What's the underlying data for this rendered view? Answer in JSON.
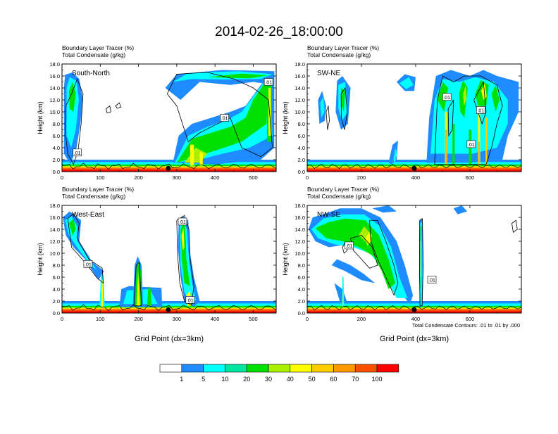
{
  "main_title": "2014-02-26_18:00:00",
  "panel_titles": {
    "tracer": "Boundary Layer Tracer   (%)",
    "condensate": "Total Condensate   (g/kg)"
  },
  "ylabel": "Height (km)",
  "xlabel": "Grid Point (dx=3km)",
  "contour_note": "Total Condensate Contours: .01 to .01 by .000",
  "colors": {
    "c0": "#ffffff",
    "c1": "#1e8cff",
    "c5": "#00ffff",
    "c10": "#00e6a0",
    "c20": "#00e000",
    "c30": "#a8f000",
    "c40": "#ffff00",
    "c50": "#ffcc00",
    "c60": "#ff9900",
    "c70": "#ff5000",
    "c100": "#ff0000"
  },
  "chart_data": [
    {
      "type": "heatmap",
      "name": "South-North",
      "xlim": [
        0,
        560
      ],
      "xticks": [
        0,
        100,
        200,
        300,
        400,
        500
      ],
      "ylim": [
        0,
        18
      ],
      "yticks": [
        "0.0",
        "2.0",
        "4.0",
        "6.0",
        "8.0",
        "10.0",
        "12.0",
        "14.0",
        "16.0",
        "18.0"
      ],
      "marker_x": 278,
      "contour_labels": [
        {
          "x": 40,
          "y": 3.2
        },
        {
          "x": 425,
          "y": 9.0
        },
        {
          "x": 540,
          "y": 15.0
        }
      ]
    },
    {
      "type": "heatmap",
      "name": "SW-NE",
      "xlim": [
        0,
        790
      ],
      "xticks": [
        0,
        200,
        400,
        600
      ],
      "ylim": [
        0,
        18
      ],
      "yticks": [
        "0.0",
        "2.0",
        "4.0",
        "6.0",
        "8.0",
        "10.0",
        "12.0",
        "14.0",
        "16.0",
        "18.0"
      ],
      "marker_x": 395,
      "contour_labels": [
        {
          "x": 515,
          "y": 12.5
        },
        {
          "x": 640,
          "y": 10.3
        },
        {
          "x": 605,
          "y": 4.6
        }
      ]
    },
    {
      "type": "heatmap",
      "name": "West-East",
      "xlim": [
        0,
        560
      ],
      "xticks": [
        0,
        100,
        200,
        300,
        400,
        500
      ],
      "ylim": [
        0,
        18
      ],
      "yticks": [
        "0.0",
        "2.0",
        "4.0",
        "6.0",
        "8.0",
        "10.0",
        "12.0",
        "14.0",
        "16.0",
        "18.0"
      ],
      "marker_x": 278,
      "contour_labels": [
        {
          "x": 68,
          "y": 8.2
        },
        {
          "x": 335,
          "y": 2.2
        },
        {
          "x": 315,
          "y": 15.3
        }
      ]
    },
    {
      "type": "heatmap",
      "name": "NW-SE",
      "xlim": [
        0,
        790
      ],
      "xticks": [
        0,
        200,
        400,
        600
      ],
      "ylim": [
        0,
        18
      ],
      "yticks": [
        "0.0",
        "2.0",
        "4.0",
        "6.0",
        "8.0",
        "10.0",
        "12.0",
        "14.0",
        "16.0",
        "18.0"
      ],
      "marker_x": 395,
      "contour_labels": [
        {
          "x": 155,
          "y": 11.3
        },
        {
          "x": 460,
          "y": 5.6
        }
      ]
    }
  ],
  "colorbar": {
    "labels": [
      "1",
      "5",
      "10",
      "20",
      "30",
      "40",
      "50",
      "60",
      "70",
      "100"
    ]
  }
}
